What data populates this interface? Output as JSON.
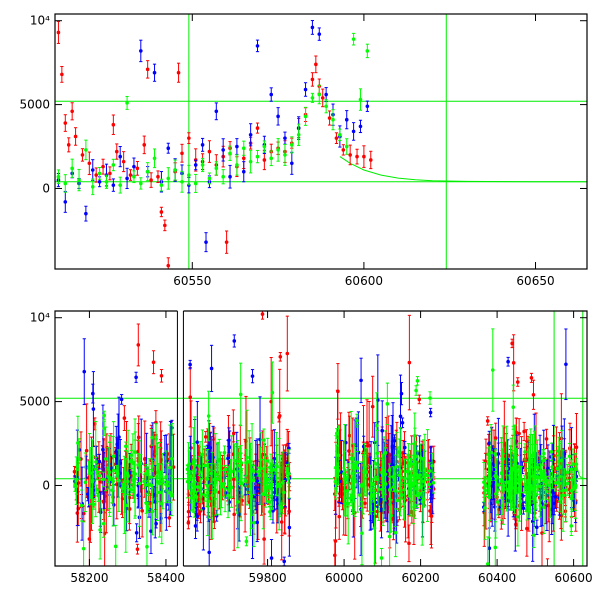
{
  "chart_data": [
    {
      "type": "scatter",
      "panel": "top",
      "xlim": [
        60510,
        60665
      ],
      "ylim": [
        -4800,
        10400
      ],
      "x_ticks": [
        {
          "value": 60550,
          "label": "60550"
        },
        {
          "value": 60600,
          "label": "60600"
        },
        {
          "value": 60650,
          "label": "60650"
        }
      ],
      "y_ticks": [
        {
          "value": 0,
          "label": "0"
        },
        {
          "value": 5000,
          "label": "5000"
        },
        {
          "value": 10000,
          "label": "10⁴"
        }
      ],
      "reference_lines": {
        "horizontal": [
          400,
          5200
        ],
        "vertical": [
          60549,
          60624
        ]
      },
      "model_curve": {
        "color": "#00ee00",
        "points": [
          [
            60593,
            1900
          ],
          [
            60596,
            1500
          ],
          [
            60600,
            1100
          ],
          [
            60605,
            800
          ],
          [
            60610,
            620
          ],
          [
            60615,
            520
          ],
          [
            60620,
            460
          ],
          [
            60630,
            420
          ],
          [
            60650,
            405
          ],
          [
            60665,
            400
          ]
        ]
      },
      "series": [
        {
          "color": "#ff0000",
          "points": [
            [
              60511,
              9300
            ],
            [
              60512,
              6800
            ],
            [
              60513,
              3900
            ],
            [
              60514,
              2600
            ],
            [
              60515,
              4600
            ],
            [
              60516,
              3100
            ],
            [
              60518,
              2000
            ],
            [
              60520,
              1500
            ],
            [
              60522,
              800
            ],
            [
              60524,
              1300
            ],
            [
              60526,
              900
            ],
            [
              60528,
              2200
            ],
            [
              60530,
              1600
            ],
            [
              60532,
              800
            ],
            [
              60534,
              1200
            ],
            [
              60536,
              2600
            ],
            [
              60538,
              500
            ],
            [
              60540,
              700
            ],
            [
              60541,
              -1400
            ],
            [
              60542,
              -2200
            ],
            [
              60543,
              -4600
            ],
            [
              60545,
              1000
            ],
            [
              60547,
              2100
            ],
            [
              60549,
              3000
            ],
            [
              60551,
              1700
            ],
            [
              60553,
              1600
            ],
            [
              60555,
              2200
            ],
            [
              60557,
              1400
            ],
            [
              60559,
              1900
            ],
            [
              60560,
              -3200
            ],
            [
              60561,
              2400
            ],
            [
              60563,
              1300
            ],
            [
              60565,
              1800
            ],
            [
              60567,
              2700
            ],
            [
              60569,
              3600
            ],
            [
              60571,
              1700
            ],
            [
              60573,
              2200
            ],
            [
              60575,
              2400
            ],
            [
              60577,
              2200
            ],
            [
              60579,
              2700
            ],
            [
              60581,
              3600
            ],
            [
              60583,
              4400
            ],
            [
              60585,
              6500
            ],
            [
              60586,
              7400
            ],
            [
              60587,
              6100
            ],
            [
              60588,
              5400
            ],
            [
              60590,
              4200
            ],
            [
              60592,
              3000
            ],
            [
              60594,
              2300
            ],
            [
              60596,
              2000
            ],
            [
              60598,
              1900
            ],
            [
              60600,
              1900
            ],
            [
              60602,
              1700
            ],
            [
              60527,
              3800
            ],
            [
              60537,
              7100
            ],
            [
              60546,
              6900
            ]
          ]
        },
        {
          "color": "#0000ff",
          "points": [
            [
              60511,
              500
            ],
            [
              60513,
              -800
            ],
            [
              60515,
              900
            ],
            [
              60517,
              300
            ],
            [
              60519,
              -1500
            ],
            [
              60521,
              1100
            ],
            [
              60523,
              400
            ],
            [
              60525,
              800
            ],
            [
              60527,
              200
            ],
            [
              60529,
              1900
            ],
            [
              60531,
              600
            ],
            [
              60533,
              1300
            ],
            [
              60535,
              8200
            ],
            [
              60537,
              1000
            ],
            [
              60539,
              6900
            ],
            [
              60541,
              400
            ],
            [
              60543,
              2400
            ],
            [
              60545,
              1100
            ],
            [
              60547,
              900
            ],
            [
              60549,
              200
            ],
            [
              60551,
              1400
            ],
            [
              60553,
              2600
            ],
            [
              60554,
              -3200
            ],
            [
              60555,
              400
            ],
            [
              60557,
              4600
            ],
            [
              60559,
              2300
            ],
            [
              60561,
              700
            ],
            [
              60563,
              2500
            ],
            [
              60565,
              1000
            ],
            [
              60567,
              3200
            ],
            [
              60569,
              8500
            ],
            [
              60571,
              2600
            ],
            [
              60573,
              5600
            ],
            [
              60575,
              4300
            ],
            [
              60577,
              3000
            ],
            [
              60579,
              1500
            ],
            [
              60581,
              3600
            ],
            [
              60583,
              5900
            ],
            [
              60585,
              9600
            ],
            [
              60587,
              9200
            ],
            [
              60589,
              5600
            ],
            [
              60591,
              4400
            ],
            [
              60593,
              3100
            ],
            [
              60595,
              4100
            ],
            [
              60597,
              3400
            ],
            [
              60599,
              3700
            ],
            [
              60601,
              4900
            ]
          ]
        },
        {
          "color": "#00ff00",
          "points": [
            [
              60511,
              700
            ],
            [
              60513,
              300
            ],
            [
              60515,
              1200
            ],
            [
              60517,
              500
            ],
            [
              60519,
              2300
            ],
            [
              60521,
              100
            ],
            [
              60523,
              900
            ],
            [
              60525,
              400
            ],
            [
              60527,
              1400
            ],
            [
              60529,
              200
            ],
            [
              60531,
              5100
            ],
            [
              60533,
              700
            ],
            [
              60535,
              300
            ],
            [
              60537,
              1000
            ],
            [
              60539,
              1800
            ],
            [
              60541,
              200
            ],
            [
              60543,
              600
            ],
            [
              60545,
              1100
            ],
            [
              60547,
              400
            ],
            [
              60549,
              800
            ],
            [
              60551,
              300
            ],
            [
              60553,
              1400
            ],
            [
              60555,
              600
            ],
            [
              60557,
              1200
            ],
            [
              60559,
              700
            ],
            [
              60561,
              2100
            ],
            [
              60563,
              1400
            ],
            [
              60565,
              2400
            ],
            [
              60567,
              1600
            ],
            [
              60569,
              1900
            ],
            [
              60571,
              2500
            ],
            [
              60573,
              1800
            ],
            [
              60575,
              2300
            ],
            [
              60577,
              2000
            ],
            [
              60579,
              2600
            ],
            [
              60581,
              3200
            ],
            [
              60583,
              4300
            ],
            [
              60585,
              5400
            ],
            [
              60587,
              5600
            ],
            [
              60589,
              4900
            ],
            [
              60591,
              4100
            ],
            [
              60593,
              3200
            ],
            [
              60595,
              2500
            ],
            [
              60597,
              8900
            ],
            [
              60599,
              5300
            ],
            [
              60601,
              8200
            ]
          ]
        }
      ]
    },
    {
      "type": "scatter",
      "panel": "bottom",
      "xlim": [
        58110,
        60635
      ],
      "ylim": [
        -4800,
        10400
      ],
      "x_axis_break": {
        "from": 58430,
        "to": 59580
      },
      "x_ticks": [
        {
          "value": 58200,
          "label": "58200"
        },
        {
          "value": 58400,
          "label": "58400"
        },
        {
          "value": 59800,
          "label": "59800"
        },
        {
          "value": 60000,
          "label": "60000"
        },
        {
          "value": 60200,
          "label": "60200"
        },
        {
          "value": 60400,
          "label": "60400"
        },
        {
          "value": 60600,
          "label": "60600"
        }
      ],
      "y_ticks": [
        {
          "value": 0,
          "label": "0"
        },
        {
          "value": 5000,
          "label": "5000"
        },
        {
          "value": 10000,
          "label": "10⁴"
        }
      ],
      "reference_lines": {
        "horizontal": [
          400,
          5200
        ],
        "vertical": [
          60549,
          60624
        ]
      },
      "seasons": [
        {
          "range": [
            58160,
            58420
          ],
          "count": 95
        },
        {
          "range": [
            59590,
            59860
          ],
          "count": 120
        },
        {
          "range": [
            59975,
            60235
          ],
          "count": 130
        },
        {
          "range": [
            60365,
            60610
          ],
          "count": 135
        }
      ],
      "model_curve": {
        "color": "#00ee00",
        "points": [
          [
            60605,
            1900
          ],
          [
            60610,
            1000
          ],
          [
            60615,
            600
          ],
          [
            60620,
            450
          ],
          [
            60635,
            400
          ]
        ]
      },
      "series_colors": [
        "#ff0000",
        "#0000ff",
        "#00ff00"
      ]
    }
  ]
}
